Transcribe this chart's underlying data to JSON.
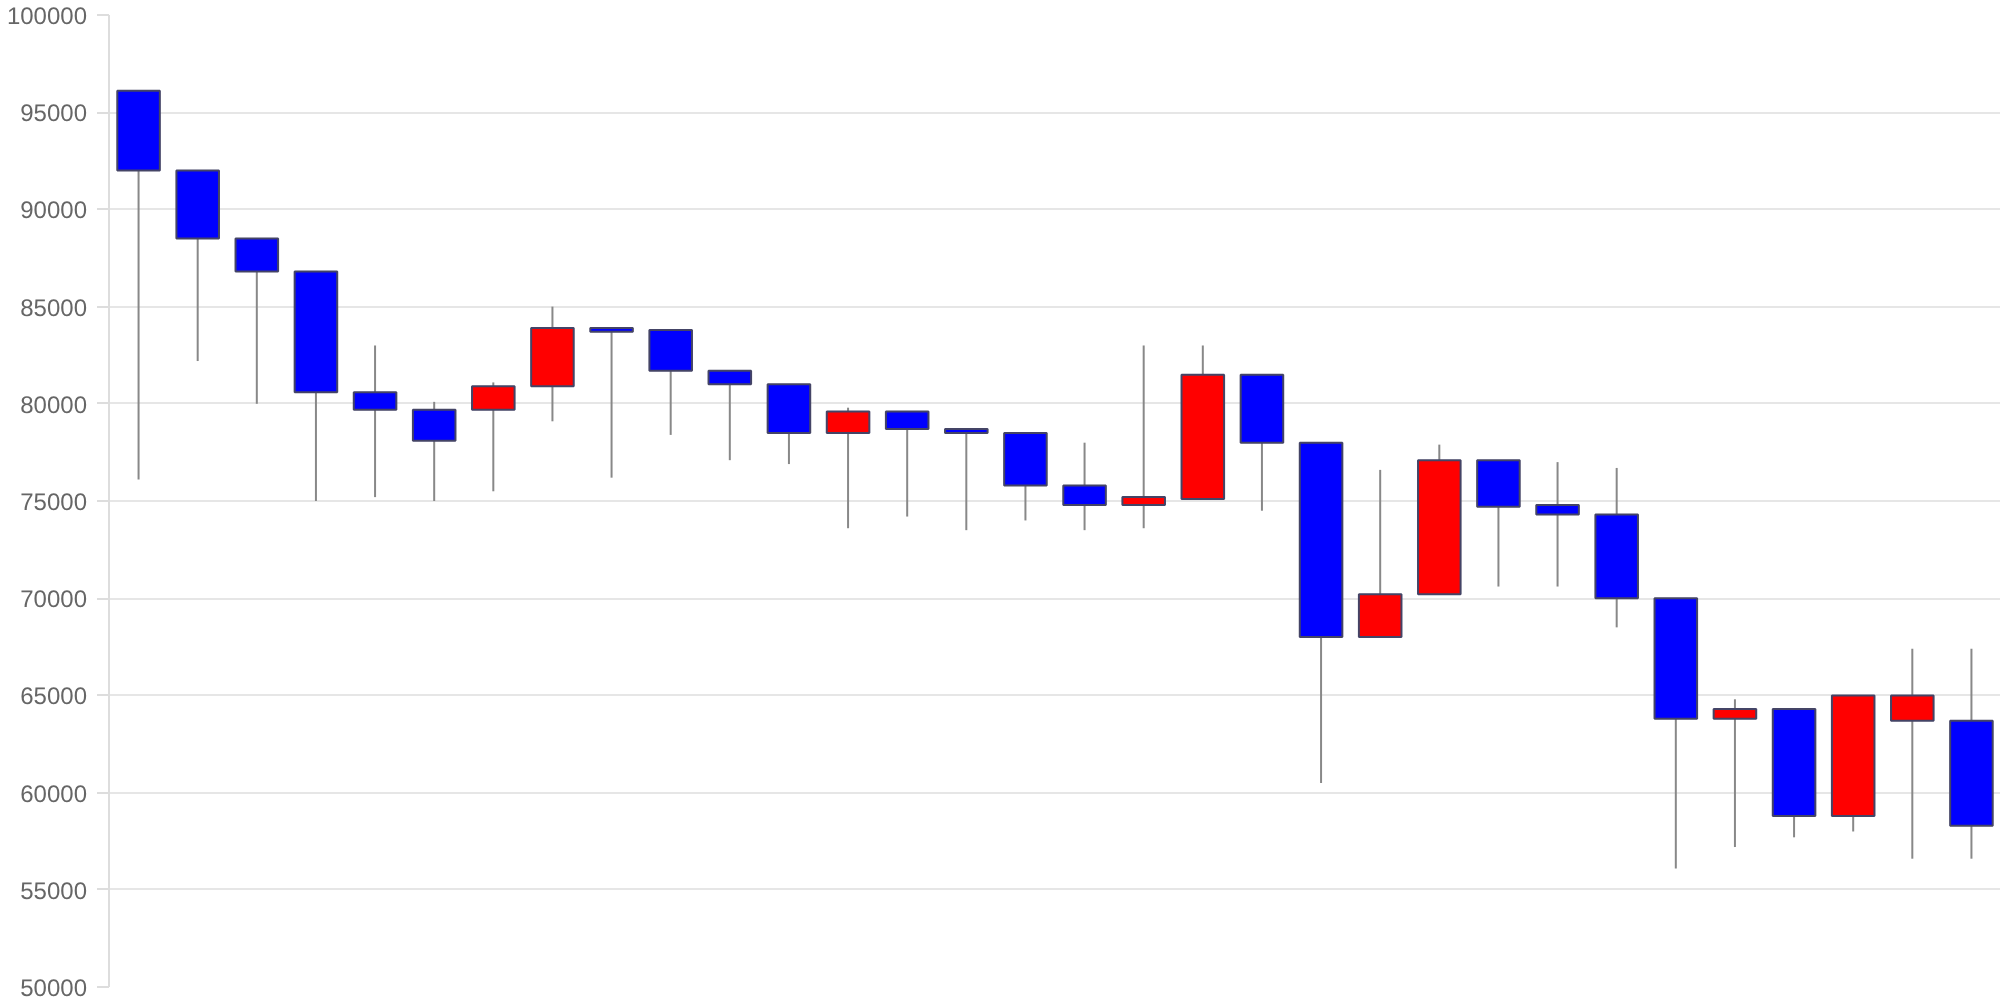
{
  "chart_data": {
    "type": "candlestick",
    "categories": [
      null,
      null,
      null,
      null,
      null,
      null,
      null,
      null,
      null,
      null,
      null,
      null,
      null,
      null,
      null,
      null,
      null,
      null,
      null,
      null,
      null,
      null,
      null,
      null,
      null,
      null,
      null,
      null,
      null,
      null,
      null,
      null
    ],
    "ohlc": [
      [
        96100,
        96100,
        76100,
        92000
      ],
      [
        92000,
        92000,
        82200,
        88500
      ],
      [
        88500,
        88500,
        80000,
        86800
      ],
      [
        86800,
        86800,
        75000,
        80600
      ],
      [
        80600,
        83000,
        75200,
        79700
      ],
      [
        79700,
        80100,
        75000,
        78100
      ],
      [
        79700,
        81100,
        75500,
        80900
      ],
      [
        80900,
        85000,
        79100,
        83900
      ],
      [
        83900,
        83900,
        76200,
        83700
      ],
      [
        83800,
        83800,
        78400,
        81700
      ],
      [
        81700,
        81700,
        77100,
        81000
      ],
      [
        81000,
        81000,
        76900,
        78500
      ],
      [
        78500,
        79800,
        73600,
        79600
      ],
      [
        79600,
        79600,
        74200,
        78700
      ],
      [
        78700,
        78700,
        73500,
        78500
      ],
      [
        78500,
        78500,
        74000,
        75800
      ],
      [
        75800,
        78000,
        73500,
        74800
      ],
      [
        74800,
        83000,
        73600,
        75200
      ],
      [
        75100,
        83000,
        75100,
        81500
      ],
      [
        81500,
        81500,
        74500,
        78000
      ],
      [
        78000,
        78000,
        60500,
        68000
      ],
      [
        68000,
        76600,
        68000,
        70200
      ],
      [
        70200,
        77900,
        70200,
        77100
      ],
      [
        77100,
        77100,
        70600,
        74700
      ],
      [
        74800,
        77000,
        70600,
        74300
      ],
      [
        74300,
        76700,
        68500,
        70000
      ],
      [
        70000,
        70000,
        56100,
        63800
      ],
      [
        63800,
        64800,
        57200,
        64300
      ],
      [
        64300,
        64300,
        57700,
        58800
      ],
      [
        58800,
        65000,
        58000,
        65000
      ],
      [
        63700,
        67400,
        56600,
        65000
      ],
      [
        63700,
        67400,
        56600,
        58300
      ]
    ],
    "colors": [
      "#0000ff",
      "#0000ff",
      "#0000ff",
      "#0000ff",
      "#0000ff",
      "#0000ff",
      "#ff0000",
      "#ff0000",
      "#0000ff",
      "#0000ff",
      "#0000ff",
      "#0000ff",
      "#ff0000",
      "#0000ff",
      "#0000ff",
      "#0000ff",
      "#0000ff",
      "#ff0000",
      "#ff0000",
      "#0000ff",
      "#0000ff",
      "#ff0000",
      "#ff0000",
      "#0000ff",
      "#0000ff",
      "#0000ff",
      "#0000ff",
      "#ff0000",
      "#0000ff",
      "#ff0000",
      "#ff0000",
      "#0000ff"
    ],
    "ylim": [
      50000,
      100000
    ],
    "yticks": [
      50000,
      55000,
      60000,
      65000,
      70000,
      75000,
      80000,
      85000,
      90000,
      95000,
      100000
    ],
    "grid": "y",
    "tick_labels": "y"
  }
}
